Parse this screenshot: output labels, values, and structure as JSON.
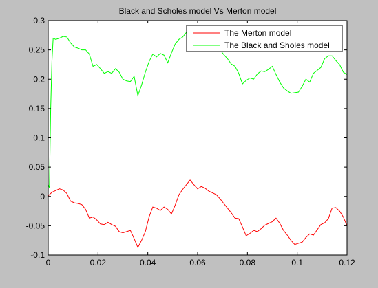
{
  "figure": {
    "background": "#c0c0c0",
    "axes_background": "#ffffff"
  },
  "chart_data": {
    "type": "line",
    "title": "Black and Scholes model Vs Merton model",
    "xlabel": "",
    "ylabel": "",
    "xlim": [
      0,
      0.12
    ],
    "ylim": [
      -0.1,
      0.3
    ],
    "xticks": [
      0,
      0.02,
      0.04,
      0.06,
      0.08,
      0.1,
      0.12
    ],
    "xtick_labels": [
      "0",
      "0.02",
      "0.04",
      "0.06",
      "0.08",
      "0.1",
      "0.12"
    ],
    "yticks": [
      -0.1,
      -0.05,
      0,
      0.05,
      0.1,
      0.15,
      0.2,
      0.25,
      0.3
    ],
    "ytick_labels": [
      "-0.1",
      "-0.05",
      "0",
      "0.05",
      "0.1",
      "0.15",
      "0.2",
      "0.25",
      "0.3"
    ],
    "grid": false,
    "legend_position": "top-right",
    "series": [
      {
        "name": "The Merton model",
        "color": "#ff0000",
        "x": [
          0,
          0.0015,
          0.003,
          0.0045,
          0.006,
          0.0075,
          0.009,
          0.0105,
          0.012,
          0.0135,
          0.015,
          0.0165,
          0.018,
          0.0195,
          0.021,
          0.0225,
          0.024,
          0.0255,
          0.027,
          0.0285,
          0.03,
          0.0315,
          0.033,
          0.0345,
          0.036,
          0.0375,
          0.039,
          0.0405,
          0.042,
          0.0435,
          0.045,
          0.0465,
          0.048,
          0.0495,
          0.051,
          0.0525,
          0.054,
          0.0555,
          0.057,
          0.0585,
          0.06,
          0.0615,
          0.063,
          0.0645,
          0.066,
          0.0675,
          0.069,
          0.0705,
          0.072,
          0.0735,
          0.075,
          0.0765,
          0.078,
          0.0795,
          0.081,
          0.0825,
          0.084,
          0.0855,
          0.087,
          0.0885,
          0.09,
          0.0915,
          0.093,
          0.0945,
          0.096,
          0.0975,
          0.099,
          0.1005,
          0.102,
          0.1035,
          0.105,
          0.1065,
          0.108,
          0.1095,
          0.111,
          0.1125,
          0.114,
          0.1155,
          0.117,
          0.1185,
          0.12
        ],
        "y": [
          0.001,
          0.007,
          0.01,
          0.013,
          0.011,
          0.005,
          -0.008,
          -0.011,
          -0.012,
          -0.014,
          -0.022,
          -0.037,
          -0.035,
          -0.04,
          -0.047,
          -0.048,
          -0.044,
          -0.048,
          -0.051,
          -0.06,
          -0.062,
          -0.06,
          -0.058,
          -0.072,
          -0.087,
          -0.075,
          -0.06,
          -0.035,
          -0.018,
          -0.02,
          -0.024,
          -0.018,
          -0.022,
          -0.03,
          -0.015,
          0.003,
          0.012,
          0.02,
          0.028,
          0.02,
          0.013,
          0.017,
          0.014,
          0.009,
          0.006,
          0.003,
          -0.004,
          -0.012,
          -0.02,
          -0.028,
          -0.037,
          -0.038,
          -0.052,
          -0.067,
          -0.063,
          -0.058,
          -0.06,
          -0.055,
          -0.049,
          -0.046,
          -0.043,
          -0.037,
          -0.046,
          -0.058,
          -0.066,
          -0.075,
          -0.082,
          -0.08,
          -0.078,
          -0.07,
          -0.064,
          -0.066,
          -0.057,
          -0.048,
          -0.045,
          -0.038,
          -0.02,
          -0.019,
          -0.025,
          -0.035,
          -0.05
        ]
      },
      {
        "name": "The Black and Sholes model",
        "color": "#00ff00",
        "x": [
          0,
          0.0005,
          0.001,
          0.0015,
          0.002,
          0.003,
          0.0045,
          0.006,
          0.0075,
          0.009,
          0.0105,
          0.012,
          0.0135,
          0.015,
          0.0165,
          0.018,
          0.0195,
          0.021,
          0.0225,
          0.024,
          0.0255,
          0.027,
          0.0285,
          0.03,
          0.0315,
          0.033,
          0.0345,
          0.036,
          0.0375,
          0.039,
          0.0405,
          0.042,
          0.0435,
          0.045,
          0.0465,
          0.048,
          0.0495,
          0.051,
          0.0525,
          0.054,
          0.0555,
          0.057,
          0.0585,
          0.06,
          0.0615,
          0.063,
          0.0645,
          0.066,
          0.0675,
          0.069,
          0.0705,
          0.072,
          0.0735,
          0.075,
          0.0765,
          0.078,
          0.0795,
          0.081,
          0.0825,
          0.084,
          0.0855,
          0.087,
          0.0885,
          0.09,
          0.0915,
          0.093,
          0.0945,
          0.096,
          0.0975,
          0.099,
          0.1005,
          0.102,
          0.1035,
          0.105,
          0.1065,
          0.108,
          0.1095,
          0.111,
          0.1125,
          0.114,
          0.1155,
          0.117,
          0.1185,
          0.12
        ],
        "y": [
          0.02,
          0.015,
          0.15,
          0.23,
          0.27,
          0.268,
          0.27,
          0.273,
          0.272,
          0.262,
          0.255,
          0.253,
          0.25,
          0.25,
          0.243,
          0.222,
          0.225,
          0.218,
          0.21,
          0.213,
          0.21,
          0.218,
          0.212,
          0.2,
          0.197,
          0.196,
          0.205,
          0.172,
          0.19,
          0.212,
          0.23,
          0.243,
          0.238,
          0.244,
          0.241,
          0.228,
          0.245,
          0.26,
          0.268,
          0.272,
          0.28,
          0.285,
          0.29,
          0.285,
          0.278,
          0.27,
          0.268,
          0.26,
          0.255,
          0.25,
          0.242,
          0.235,
          0.226,
          0.222,
          0.21,
          0.192,
          0.198,
          0.202,
          0.2,
          0.209,
          0.214,
          0.213,
          0.217,
          0.222,
          0.208,
          0.195,
          0.185,
          0.18,
          0.176,
          0.177,
          0.178,
          0.188,
          0.2,
          0.195,
          0.21,
          0.215,
          0.22,
          0.235,
          0.24,
          0.24,
          0.232,
          0.225,
          0.212,
          0.208
        ]
      }
    ]
  }
}
